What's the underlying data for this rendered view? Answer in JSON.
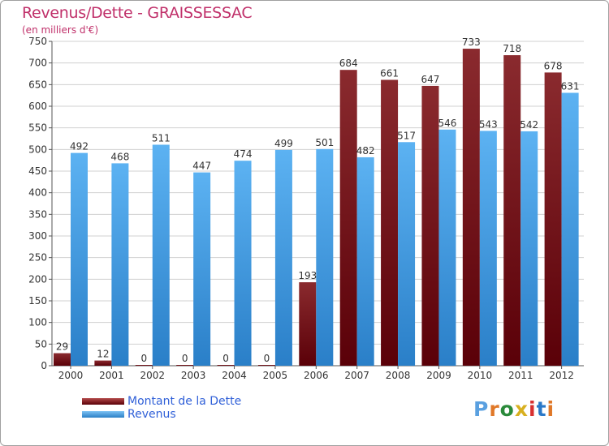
{
  "title": "Revenus/Dette - GRAISSESSAC",
  "subtitle": "(en milliers d'€)",
  "colors": {
    "title": "#c0306a",
    "dette": "#6e0f14",
    "revenus": "#4aa3e8",
    "legend_text": "#3060d8"
  },
  "logo": {
    "letters": [
      "P",
      "r",
      "o",
      "x",
      "i",
      "t",
      "i"
    ],
    "colors": [
      "#5aa0e0",
      "#e07828",
      "#2a8a3a",
      "#d8b020",
      "#d83030",
      "#2a78c8",
      "#e07828"
    ]
  },
  "chart_data": {
    "type": "bar",
    "categories": [
      "2000",
      "2001",
      "2002",
      "2003",
      "2004",
      "2005",
      "2006",
      "2007",
      "2008",
      "2009",
      "2010",
      "2011",
      "2012"
    ],
    "series": [
      {
        "name": "Montant de la Dette",
        "values": [
          29,
          12,
          0,
          0,
          0,
          0,
          193,
          684,
          661,
          647,
          733,
          718,
          678
        ]
      },
      {
        "name": "Revenus",
        "values": [
          492,
          468,
          511,
          447,
          474,
          499,
          501,
          482,
          517,
          546,
          543,
          542,
          631
        ]
      }
    ],
    "ylim": [
      0,
      750
    ],
    "yticks": [
      0,
      50,
      100,
      150,
      200,
      250,
      300,
      350,
      400,
      450,
      500,
      550,
      600,
      650,
      700,
      750
    ],
    "grid": true,
    "legend": "bottom-left"
  }
}
